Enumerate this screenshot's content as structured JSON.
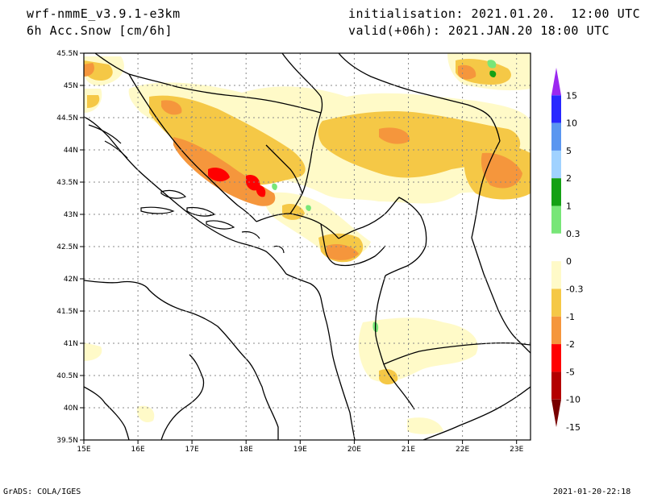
{
  "header": {
    "model": "wrf-nmmE_v3.9.1-e3km",
    "variable": "6h Acc.Snow [cm/6h]",
    "init": "initialisation: 2021.01.20.  12:00 UTC",
    "valid": "valid(+06h): 2021.JAN.20 18:00 UTC"
  },
  "map": {
    "lon_labels": [
      "15E",
      "16E",
      "17E",
      "18E",
      "19E",
      "20E",
      "21E",
      "22E",
      "23E"
    ],
    "lat_labels": [
      "45.5N",
      "45N",
      "44.5N",
      "44N",
      "43.5N",
      "43N",
      "42.5N",
      "42N",
      "41.5N",
      "41N",
      "40.5N",
      "40N",
      "39.5N"
    ],
    "lon_range": [
      15,
      23.3
    ],
    "lat_range": [
      39.5,
      45.5
    ],
    "grid": true
  },
  "legend": {
    "labels": [
      "15",
      "10",
      "5",
      "2",
      "1",
      "0.3",
      "0",
      "-0.3",
      "-1",
      "-2",
      "-5",
      "-10",
      "-15"
    ],
    "colors": [
      "#9b28f0",
      "#2828ff",
      "#5a96f0",
      "#a0d2ff",
      "#14a014",
      "#78e678",
      "#ffffff",
      "#fffac8",
      "#f5c846",
      "#f5963c",
      "#ff0000",
      "#b40000",
      "#780000"
    ]
  },
  "footer": {
    "left": "GrADS: COLA/IGES",
    "right": "2021-01-20-22:18"
  }
}
